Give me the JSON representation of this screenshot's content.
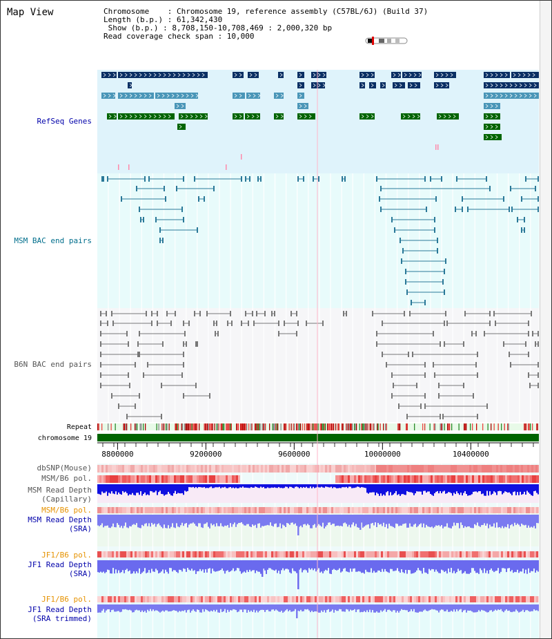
{
  "window": {
    "title": "Map View"
  },
  "info": {
    "chromosome_line": "Chromosome    : Chromosome 19, reference assembly (C57BL/6J) (Build 37)",
    "length_line": "Length (b.p.) : 61,342,430",
    "show_line": " Show (b.p.) : 8,708,150-10,708,469 : 2,000,320 bp",
    "read_span_line": "Read coverage check span : 10,000"
  },
  "tracks": {
    "refseq": "RefSeq Genes",
    "msm_bac": "MSM BAC end pairs",
    "b6n_bac": "B6N BAC end pairs",
    "repeat": "Repeat",
    "chromosome": "chromosome 19",
    "dbsnp": "dbSNP(Mouse)",
    "msm_b6_pol": "MSM/B6 pol.",
    "msm_depth_cap_1": "MSM Read Depth",
    "msm_depth_cap_2": "(Capillary)",
    "msm_b6_pol2": "MSM/B6 pol.",
    "msm_depth_sra_1": "MSM Read Depth",
    "msm_depth_sra_2": "(SRA)",
    "jf1_b6_pol": "JF1/B6 pol.",
    "jf1_depth_sra_1": "JF1 Read Depth",
    "jf1_depth_sra_2": "(SRA)",
    "jf1_b6_pol2": "JF1/B6 pol.",
    "jf1_depth_trim_1": "JF1 Read Depth",
    "jf1_depth_trim_2": "(SRA trimmed)"
  },
  "axis": {
    "ticks": [
      "8800000",
      "9200000",
      "9600000",
      "10000000",
      "10400000"
    ],
    "tick_values": [
      8800000,
      9200000,
      9600000,
      10000000,
      10400000
    ],
    "start": 8708150,
    "end": 10708469
  },
  "colors": {
    "refseq_bg": "#dff3fb",
    "msm_bg": "#e8fbfb",
    "b6n_bg": "#f6f6f8",
    "gene_dark": "#0a2f64",
    "gene_mid": "#4a96b8",
    "gene_green": "#006400",
    "msm_line": "#2a7898",
    "b6n_line": "#777777",
    "chrom_bar": "#006400",
    "snp_light": "#f8c8c8",
    "depth_blue": "#1010e0",
    "depth_light": "#7a7af0"
  }
}
